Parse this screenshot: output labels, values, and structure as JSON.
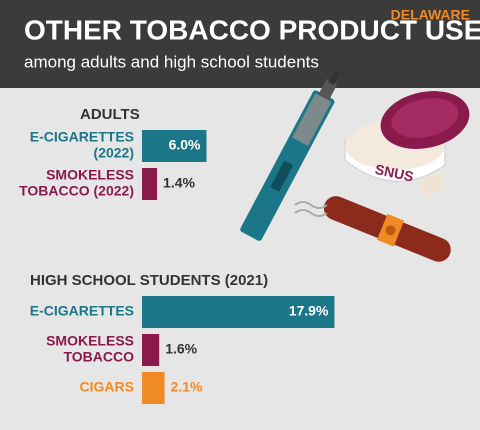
{
  "header": {
    "title": "OTHER TOBACCO PRODUCT USE",
    "subtitle": "among adults and high school students",
    "state": "DELAWARE"
  },
  "illustration": {
    "tin_label": "SNUS"
  },
  "chart_data": [
    {
      "type": "bar",
      "orientation": "horizontal",
      "title": "ADULTS",
      "categories": [
        [
          "E-CIGARETTES",
          "(2022)"
        ],
        [
          "SMOKELESS",
          "TOBACCO (2022)"
        ]
      ],
      "values": [
        6.0,
        1.4
      ],
      "value_labels": [
        "6.0%",
        "1.4%"
      ],
      "colors": [
        "#1b7688",
        "#8a1a4c"
      ]
    },
    {
      "type": "bar",
      "orientation": "horizontal",
      "title": "HIGH SCHOOL STUDENTS (2021)",
      "categories": [
        [
          "E-CIGARETTES"
        ],
        [
          "SMOKELESS",
          "TOBACCO"
        ],
        [
          "CIGARS"
        ]
      ],
      "values": [
        17.9,
        1.6,
        2.1
      ],
      "value_labels": [
        "17.9%",
        "1.6%",
        "2.1%"
      ],
      "colors": [
        "#1b7688",
        "#8a1a4c",
        "#f08a24"
      ]
    }
  ]
}
